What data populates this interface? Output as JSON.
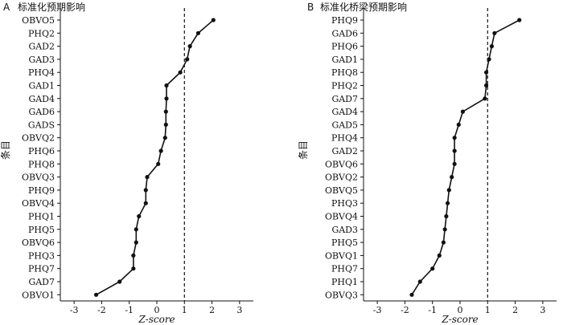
{
  "chart_data": [
    {
      "type": "line",
      "panel_letter": "A",
      "title": "标准化预期影响",
      "xlabel": "Z-score",
      "ylabel": "条目",
      "xlim": [
        -3.5,
        3.5
      ],
      "xticks": [
        -3,
        -2,
        -1,
        0,
        1,
        2,
        3
      ],
      "reference_x": 1,
      "grid": false,
      "items": [
        "OBVO5",
        "PHQ2",
        "GAD2",
        "GAD3",
        "PHQ4",
        "GAD1",
        "GAD4",
        "GAD6",
        "GADS",
        "OBVQ2",
        "PHQ6",
        "PHQ8",
        "OBVQ3",
        "PHQ9",
        "OBVQ4",
        "PHQ1",
        "PHQ5",
        "OBVQ6",
        "PHQ3",
        "PHQ7",
        "GAD7",
        "OBVO1"
      ],
      "values": [
        2.05,
        1.5,
        1.2,
        1.1,
        0.85,
        0.35,
        0.35,
        0.33,
        0.33,
        0.3,
        0.15,
        0.05,
        -0.35,
        -0.4,
        -0.4,
        -0.65,
        -0.75,
        -0.75,
        -0.85,
        -0.85,
        -1.35,
        -2.2
      ]
    },
    {
      "type": "line",
      "panel_letter": "B",
      "title": "标准化桥梁预期影响",
      "xlabel": "Z-score",
      "ylabel": "条目",
      "xlim": [
        -3.5,
        3.5
      ],
      "xticks": [
        -3,
        -2,
        -1,
        0,
        1,
        2,
        3
      ],
      "reference_x": 1,
      "grid": false,
      "items": [
        "PHQ9",
        "GAD6",
        "PHQ6",
        "GAD1",
        "PHQ8",
        "PHQ2",
        "GAD7",
        "GAD4",
        "GAD5",
        "PHQ4",
        "GAD2",
        "OBVQ6",
        "OBVQ2",
        "OBVQ5",
        "PHQ3",
        "OBVQ4",
        "GAD3",
        "PHQ5",
        "OBVQ1",
        "PHQ7",
        "PHQ1",
        "OBVQ3"
      ],
      "values": [
        2.15,
        1.25,
        1.15,
        1.05,
        0.95,
        0.95,
        0.9,
        0.1,
        -0.05,
        -0.2,
        -0.2,
        -0.2,
        -0.3,
        -0.4,
        -0.45,
        -0.5,
        -0.55,
        -0.6,
        -0.75,
        -1.0,
        -1.45,
        -1.75
      ]
    }
  ]
}
